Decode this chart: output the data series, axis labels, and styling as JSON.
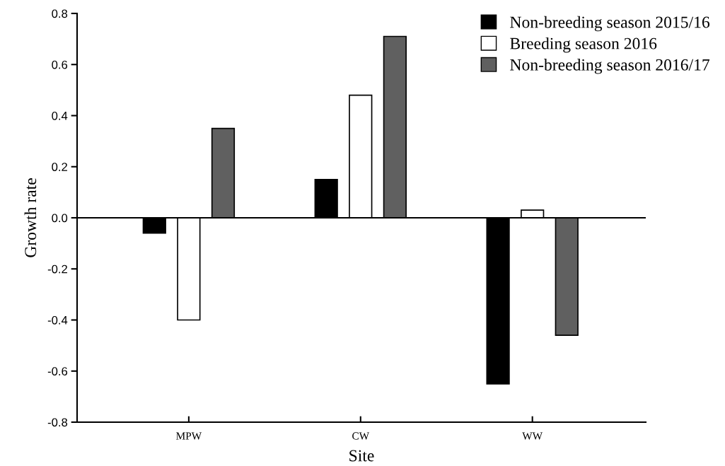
{
  "chart_data": {
    "type": "bar",
    "xlabel": "Site",
    "ylabel": "Growth rate",
    "categories": [
      "MPW",
      "CW",
      "WW"
    ],
    "series": [
      {
        "name": "Non-breeding season 2015/16",
        "color": "#000000",
        "values": [
          -0.06,
          0.15,
          -0.65
        ]
      },
      {
        "name": "Breeding season 2016",
        "color": "#ffffff",
        "values": [
          -0.4,
          0.48,
          0.03
        ]
      },
      {
        "name": "Non-breeding season 2016/17",
        "color": "#606060",
        "values": [
          0.35,
          0.71,
          -0.46
        ]
      }
    ],
    "ylim": [
      -0.8,
      0.8
    ],
    "yticks": [
      {
        "value": -0.8,
        "label": "-0.8"
      },
      {
        "value": -0.6,
        "label": "-0.6"
      },
      {
        "value": -0.4,
        "label": "-0.4"
      },
      {
        "value": -0.2,
        "label": "-0.2"
      },
      {
        "value": 0,
        "label": "0.0"
      },
      {
        "value": 0.2,
        "label": "0.2"
      },
      {
        "value": 0.4,
        "label": "0.4"
      },
      {
        "value": 0.6,
        "label": "0.6"
      },
      {
        "value": 0.8,
        "label": "0.8"
      }
    ],
    "ref_lines": [
      {
        "axis": "y",
        "value": 0,
        "color": "#000000"
      }
    ],
    "grid": false,
    "legend": "top right"
  }
}
